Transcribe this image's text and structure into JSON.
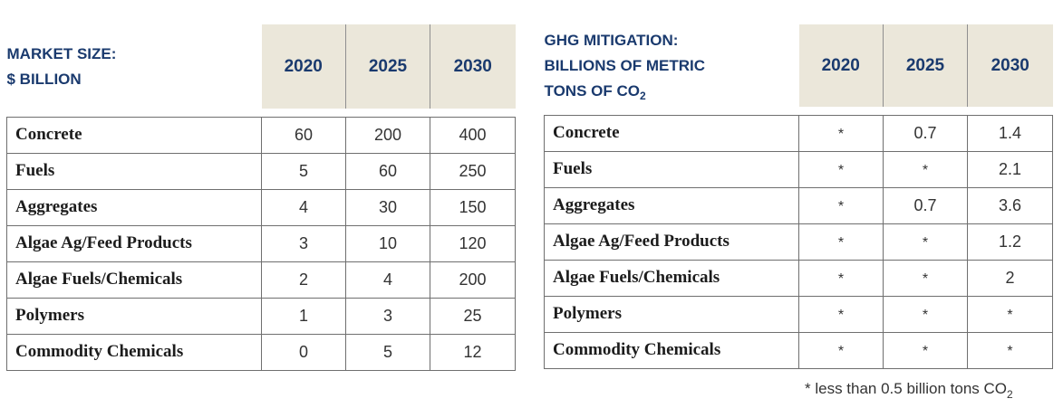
{
  "market_table": {
    "title_line1": "MARKET SIZE:",
    "title_line2": "$ BILLION",
    "years": [
      "2020",
      "2025",
      "2030"
    ],
    "rows": [
      {
        "label": "Concrete",
        "values": [
          "60",
          "200",
          "400"
        ]
      },
      {
        "label": "Fuels",
        "values": [
          "5",
          "60",
          "250"
        ]
      },
      {
        "label": "Aggregates",
        "values": [
          "4",
          "30",
          "150"
        ]
      },
      {
        "label": "Algae Ag/Feed Products",
        "values": [
          "3",
          "10",
          "120"
        ]
      },
      {
        "label": "Algae Fuels/Chemicals",
        "values": [
          "2",
          "4",
          "200"
        ]
      },
      {
        "label": "Polymers",
        "values": [
          "1",
          "3",
          "25"
        ]
      },
      {
        "label": "Commodity Chemicals",
        "values": [
          "0",
          "5",
          "12"
        ]
      }
    ]
  },
  "ghg_table": {
    "title_line1": "GHG MITIGATION:",
    "title_line2": "BILLIONS OF METRIC",
    "title_line3": "TONS OF CO",
    "title_sub": "2",
    "years": [
      "2020",
      "2025",
      "2030"
    ],
    "rows": [
      {
        "label": "Concrete",
        "values": [
          "*",
          "0.7",
          "1.4"
        ]
      },
      {
        "label": "Fuels",
        "values": [
          "*",
          "*",
          "2.1"
        ]
      },
      {
        "label": "Aggregates",
        "values": [
          "*",
          "0.7",
          "3.6"
        ]
      },
      {
        "label": "Algae Ag/Feed Products",
        "values": [
          "*",
          "*",
          "1.2"
        ]
      },
      {
        "label": "Algae Fuels/Chemicals",
        "values": [
          "*",
          "*",
          "2"
        ]
      },
      {
        "label": "Polymers",
        "values": [
          "*",
          "*",
          "*"
        ]
      },
      {
        "label": "Commodity Chemicals",
        "values": [
          "*",
          "*",
          "*"
        ]
      }
    ]
  },
  "footnote": {
    "text": "* less than 0.5 billion tons CO",
    "sub": "2"
  }
}
